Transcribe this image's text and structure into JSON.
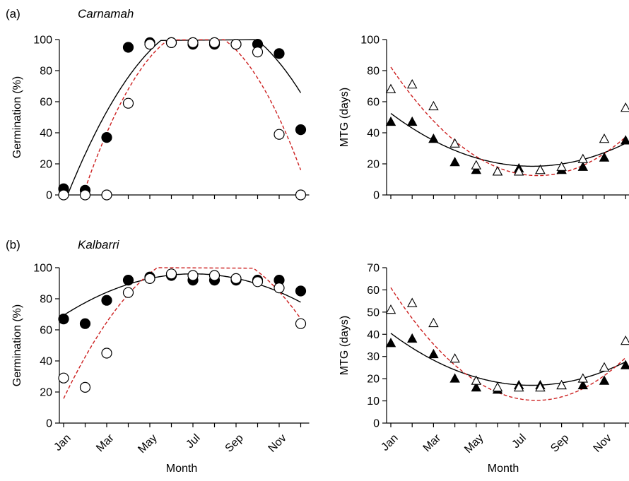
{
  "figure": {
    "xlabel": "Month",
    "month_ticks": [
      "Jan",
      "Mar",
      "May",
      "Jul",
      "Sep",
      "Nov"
    ],
    "colors": {
      "fitted_black": "#000000",
      "fitted_red_dashed": "#cc1f1f",
      "marker": "#000000"
    }
  },
  "panels": [
    {
      "label": "(a)",
      "site": "Carnamah"
    },
    {
      "label": "(b)",
      "site": "Kalbarri"
    }
  ],
  "chart_data": [
    {
      "type": "scatter",
      "panel": "(a)",
      "title": "Carnamah",
      "xlabel": "",
      "ylabel": "Germination (%)",
      "x": [
        "Jan",
        "Feb",
        "Mar",
        "Apr",
        "May",
        "Jun",
        "Jul",
        "Aug",
        "Sep",
        "Oct",
        "Nov",
        "Dec"
      ],
      "ylim": [
        0,
        100
      ],
      "yticks": [
        0,
        20,
        40,
        60,
        80,
        100
      ],
      "series": [
        {
          "marker": "filled-circle",
          "values": [
            4,
            3,
            37,
            95,
            98,
            98,
            97,
            97,
            97,
            97,
            91,
            42
          ]
        },
        {
          "marker": "open-circle",
          "values": [
            0,
            0,
            0,
            59,
            97,
            98,
            98,
            98,
            97,
            92,
            39,
            0
          ]
        }
      ],
      "fits": [
        {
          "style": "solid-black",
          "coef": [
            -44.2,
            40.42,
            -2.605
          ],
          "x_range": [
            1,
            12
          ]
        },
        {
          "style": "dashed-red",
          "coef": [
            -90.8,
            55.1,
            -3.85
          ],
          "x_range": [
            2,
            12
          ]
        }
      ]
    },
    {
      "type": "scatter",
      "panel": "(a)",
      "title": "",
      "xlabel": "",
      "ylabel": "MTG (days)",
      "x": [
        "Jan",
        "Feb",
        "Mar",
        "Apr",
        "May",
        "Jun",
        "Jul",
        "Aug",
        "Sep",
        "Oct",
        "Nov",
        "Dec"
      ],
      "ylim": [
        0,
        100
      ],
      "yticks": [
        0,
        20,
        40,
        60,
        80,
        100
      ],
      "series": [
        {
          "marker": "filled-triangle",
          "values": [
            47,
            47,
            36,
            21,
            16,
            15,
            17,
            16,
            16,
            18,
            24,
            35
          ]
        },
        {
          "marker": "open-triangle",
          "values": [
            68,
            71,
            57,
            33,
            19,
            15,
            15,
            16,
            18,
            23,
            36,
            56
          ]
        }
      ],
      "fits": [
        {
          "style": "solid-black",
          "coef": [
            63.5,
            -11.8,
            0.773
          ],
          "x_range": [
            1,
            12
          ]
        },
        {
          "style": "dashed-red",
          "coef": [
            104.0,
            -23.2,
            1.47
          ],
          "x_range": [
            1,
            12
          ]
        }
      ]
    },
    {
      "type": "scatter",
      "panel": "(b)",
      "title": "Kalbarri",
      "xlabel": "Month",
      "ylabel": "Germination (%)",
      "x": [
        "Jan",
        "Feb",
        "Mar",
        "Apr",
        "May",
        "Jun",
        "Jul",
        "Aug",
        "Sep",
        "Oct",
        "Nov",
        "Dec"
      ],
      "ylim": [
        0,
        100
      ],
      "yticks": [
        0,
        20,
        40,
        60,
        80,
        100
      ],
      "series": [
        {
          "marker": "filled-circle",
          "values": [
            67,
            64,
            79,
            92,
            94,
            95,
            92,
            92,
            92,
            92,
            92,
            85
          ]
        },
        {
          "marker": "open-circle",
          "values": [
            29,
            23,
            45,
            84,
            93,
            96,
            95,
            95,
            93,
            91,
            87,
            64
          ]
        }
      ],
      "fits": [
        {
          "style": "solid-black",
          "coef": [
            59.8,
            10.32,
            -0.735
          ],
          "x_range": [
            1,
            12
          ]
        },
        {
          "style": "dashed-red",
          "coef": [
            -15.4,
            33.4,
            -2.21
          ],
          "x_range": [
            1,
            12
          ]
        }
      ]
    },
    {
      "type": "scatter",
      "panel": "(b)",
      "title": "",
      "xlabel": "Month",
      "ylabel": "MTG (days)",
      "x": [
        "Jan",
        "Feb",
        "Mar",
        "Apr",
        "May",
        "Jun",
        "Jul",
        "Aug",
        "Sep",
        "Oct",
        "Nov",
        "Dec"
      ],
      "ylim": [
        0,
        70
      ],
      "yticks": [
        0,
        10,
        20,
        30,
        40,
        50,
        60,
        70
      ],
      "series": [
        {
          "marker": "filled-triangle",
          "values": [
            36,
            38,
            31,
            20,
            16,
            15,
            17,
            17,
            17,
            17,
            19,
            26
          ]
        },
        {
          "marker": "open-triangle",
          "values": [
            51,
            54,
            45,
            29,
            19,
            16,
            16,
            16,
            17,
            20,
            25,
            37
          ]
        }
      ],
      "fits": [
        {
          "style": "solid-black",
          "coef": [
            48.1,
            -8.2,
            0.541
          ],
          "x_range": [
            1,
            12
          ]
        },
        {
          "style": "dashed-red",
          "coef": [
            77.0,
            -17.1,
            1.095
          ],
          "x_range": [
            1,
            12
          ]
        }
      ]
    }
  ]
}
